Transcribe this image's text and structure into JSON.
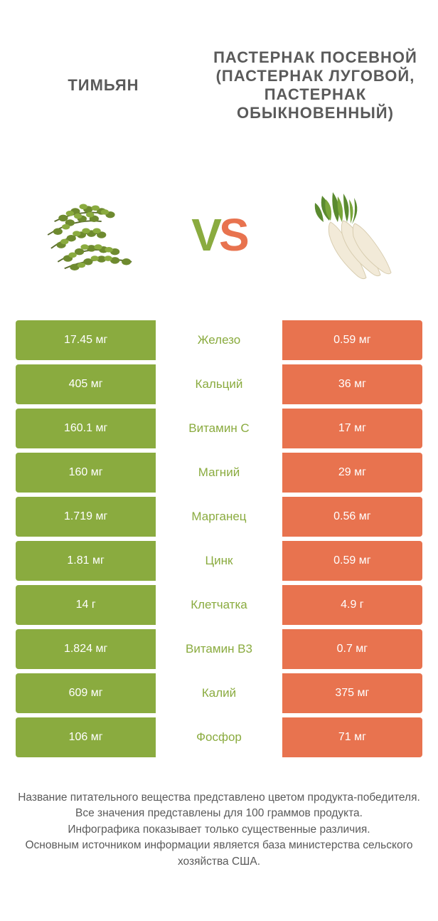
{
  "colors": {
    "green": "#8aab3f",
    "orange": "#e8734f",
    "text_gray": "#5a5a5a"
  },
  "header": {
    "left_title": "ТИМЬЯН",
    "right_title": "ПАСТЕРНАК ПОСЕВНОЙ (ПАСТЕРНАК ЛУГОВОЙ, ПАСТЕРНАК ОБЫКНОВЕННЫЙ)"
  },
  "vs": {
    "v": "V",
    "s": "S"
  },
  "rows": [
    {
      "left": "17.45 мг",
      "label": "Железо",
      "right": "0.59 мг",
      "winner": "left"
    },
    {
      "left": "405 мг",
      "label": "Кальций",
      "right": "36 мг",
      "winner": "left"
    },
    {
      "left": "160.1 мг",
      "label": "Витамин C",
      "right": "17 мг",
      "winner": "left"
    },
    {
      "left": "160 мг",
      "label": "Магний",
      "right": "29 мг",
      "winner": "left"
    },
    {
      "left": "1.719 мг",
      "label": "Марганец",
      "right": "0.56 мг",
      "winner": "left"
    },
    {
      "left": "1.81 мг",
      "label": "Цинк",
      "right": "0.59 мг",
      "winner": "left"
    },
    {
      "left": "14 г",
      "label": "Клетчатка",
      "right": "4.9 г",
      "winner": "left"
    },
    {
      "left": "1.824 мг",
      "label": "Витамин B3",
      "right": "0.7 мг",
      "winner": "left"
    },
    {
      "left": "609 мг",
      "label": "Калий",
      "right": "375 мг",
      "winner": "left"
    },
    {
      "left": "106 мг",
      "label": "Фосфор",
      "right": "71 мг",
      "winner": "left"
    }
  ],
  "footer": {
    "line1": "Название питательного вещества представлено цветом продукта-победителя.",
    "line2": "Все значения представлены для 100 граммов продукта.",
    "line3": "Инфографика показывает только существенные различия.",
    "line4": "Основным источником информации является база министерства сельского хозяйства США."
  }
}
